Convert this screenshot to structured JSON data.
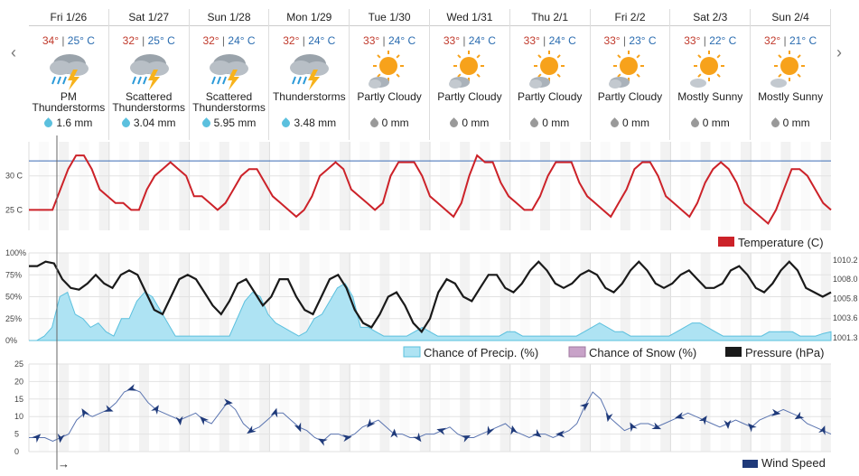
{
  "days": [
    {
      "date": "Fri 1/26",
      "hi": "34°",
      "lo": "25° C",
      "cond": "PM Thunderstorms",
      "precip": "1.6 mm",
      "icon": "thunderstorm-icon"
    },
    {
      "date": "Sat 1/27",
      "hi": "32°",
      "lo": "25° C",
      "cond": "Scattered Thunderstorms",
      "precip": "3.04 mm",
      "icon": "thunderstorm-icon"
    },
    {
      "date": "Sun 1/28",
      "hi": "32°",
      "lo": "24° C",
      "cond": "Scattered Thunderstorms",
      "precip": "5.95 mm",
      "icon": "thunderstorm-icon"
    },
    {
      "date": "Mon 1/29",
      "hi": "32°",
      "lo": "24° C",
      "cond": "Thunderstorms",
      "precip": "3.48 mm",
      "icon": "thunderstorm-icon"
    },
    {
      "date": "Tue 1/30",
      "hi": "33°",
      "lo": "24° C",
      "cond": "Partly Cloudy",
      "precip": "0 mm",
      "icon": "partly-cloudy-icon"
    },
    {
      "date": "Wed 1/31",
      "hi": "33°",
      "lo": "24° C",
      "cond": "Partly Cloudy",
      "precip": "0 mm",
      "icon": "partly-cloudy-icon"
    },
    {
      "date": "Thu 2/1",
      "hi": "33°",
      "lo": "24° C",
      "cond": "Partly Cloudy",
      "precip": "0 mm",
      "icon": "partly-cloudy-icon"
    },
    {
      "date": "Fri 2/2",
      "hi": "33°",
      "lo": "23° C",
      "cond": "Partly Cloudy",
      "precip": "0 mm",
      "icon": "partly-cloudy-icon"
    },
    {
      "date": "Sat 2/3",
      "hi": "33°",
      "lo": "22° C",
      "cond": "Mostly Sunny",
      "precip": "0 mm",
      "icon": "mostly-sunny-icon"
    },
    {
      "date": "Sun 2/4",
      "hi": "32°",
      "lo": "21° C",
      "cond": "Mostly Sunny",
      "precip": "0 mm",
      "icon": "mostly-sunny-icon"
    }
  ],
  "nav": {
    "prev": "‹",
    "next": "›"
  },
  "colors": {
    "temperature": "#cc2229",
    "precip": "#5bc0de",
    "snow": "#c8a2c8",
    "pressure": "#1a1a1a",
    "wind": "#1f3a7a",
    "reference": "#3b6bb5"
  },
  "chart_data": [
    {
      "type": "line",
      "legend": "Temperature (C)",
      "ylim": [
        22,
        35
      ],
      "yticks": [
        "30 C",
        "25 C"
      ],
      "ytick_values": [
        30,
        25
      ],
      "reference_line": 32.2,
      "x_hours_step": 3,
      "values": [
        25,
        25,
        25,
        25,
        28,
        31,
        33,
        33,
        31,
        28,
        27,
        26,
        26,
        25,
        25,
        28,
        30,
        31,
        32,
        31,
        30,
        27,
        27,
        26,
        25,
        26,
        28,
        30,
        31,
        31,
        29,
        27,
        26,
        25,
        24,
        25,
        27,
        30,
        31,
        32,
        31,
        28,
        27,
        26,
        25,
        26,
        30,
        32,
        32,
        32,
        30,
        27,
        26,
        25,
        24,
        26,
        30,
        33,
        32,
        32,
        29,
        27,
        26,
        25,
        25,
        27,
        30,
        32,
        32,
        32,
        29,
        27,
        26,
        25,
        24,
        26,
        28,
        31,
        32,
        32,
        30,
        27,
        26,
        25,
        24,
        26,
        29,
        31,
        32,
        31,
        29,
        26,
        25,
        24,
        23,
        25,
        28,
        31,
        31,
        30,
        28,
        26,
        25
      ]
    },
    {
      "type": "area",
      "series": [
        {
          "name": "Chance of Precip. (%)",
          "values": [
            0,
            0,
            5,
            15,
            50,
            55,
            30,
            25,
            15,
            20,
            10,
            5,
            25,
            25,
            45,
            55,
            50,
            35,
            20,
            5,
            5,
            5,
            5,
            5,
            5,
            5,
            5,
            25,
            45,
            55,
            50,
            30,
            20,
            15,
            10,
            5,
            10,
            25,
            30,
            45,
            60,
            65,
            50,
            15,
            15,
            10,
            5,
            5,
            5,
            5,
            10,
            15,
            10,
            5,
            5,
            5,
            5,
            5,
            5,
            5,
            5,
            5,
            10,
            10,
            5,
            5,
            5,
            5,
            5,
            5,
            5,
            5,
            10,
            15,
            20,
            15,
            10,
            10,
            5,
            5,
            5,
            5,
            5,
            5,
            10,
            15,
            20,
            20,
            15,
            10,
            5,
            5,
            5,
            5,
            5,
            5,
            10,
            10,
            10,
            10,
            5,
            5,
            5,
            8,
            10
          ]
        },
        {
          "name": "Chance of Snow (%)",
          "values": []
        },
        {
          "name": "Pressure (hPa)",
          "values": [
            1009.5,
            1009.5,
            1010.0,
            1009.8,
            1008.0,
            1007.0,
            1006.8,
            1007.5,
            1008.5,
            1007.5,
            1007.0,
            1008.5,
            1009.0,
            1008.5,
            1006.5,
            1004.5,
            1004.0,
            1006.0,
            1008.0,
            1008.5,
            1008.0,
            1006.5,
            1005.0,
            1004.0,
            1005.5,
            1007.5,
            1008.0,
            1006.5,
            1005.0,
            1006.0,
            1008.0,
            1008.0,
            1006.0,
            1004.5,
            1004.0,
            1006.0,
            1008.0,
            1008.5,
            1007.0,
            1004.5,
            1003.0,
            1002.5,
            1004.0,
            1006.0,
            1006.5,
            1005.0,
            1003.0,
            1002.0,
            1003.5,
            1006.5,
            1008.0,
            1007.5,
            1006.0,
            1005.5,
            1007.0,
            1008.5,
            1008.5,
            1007.0,
            1006.5,
            1007.5,
            1009.0,
            1010.0,
            1009.0,
            1007.5,
            1007.0,
            1007.5,
            1008.5,
            1009.0,
            1008.5,
            1007.0,
            1006.5,
            1007.5,
            1009.0,
            1010.0,
            1009.0,
            1007.5,
            1007.0,
            1007.5,
            1008.5,
            1009.0,
            1008.0,
            1007.0,
            1007.0,
            1007.5,
            1009.0,
            1009.5,
            1008.5,
            1007.0,
            1006.5,
            1007.5,
            1009.0,
            1010.0,
            1009.0,
            1007.0,
            1006.5,
            1006.0,
            1006.5
          ]
        }
      ],
      "ylim_pct": [
        0,
        100
      ],
      "yticks_left": [
        "100%",
        "75%",
        "50%",
        "25%",
        "0%"
      ],
      "ytick_left_values": [
        100,
        75,
        50,
        25,
        0
      ],
      "ylim_hpa": [
        1001,
        1011
      ],
      "yticks_right": [
        "1010.2",
        "1008.0",
        "1005.8",
        "1003.6",
        "1001.3"
      ],
      "ytick_right_values": [
        1010.2,
        1008.0,
        1005.8,
        1003.6,
        1001.3
      ]
    },
    {
      "type": "line",
      "legend": "Wind Speed",
      "ylim": [
        0,
        25
      ],
      "yticks": [
        "25",
        "20",
        "15",
        "10",
        "5",
        "0"
      ],
      "ytick_values": [
        25,
        20,
        15,
        10,
        5,
        0
      ],
      "values": [
        4,
        4,
        4,
        3,
        4,
        5,
        9,
        11,
        10,
        11,
        12,
        14,
        17,
        18,
        17,
        14,
        12,
        11,
        10,
        9,
        10,
        11,
        9,
        8,
        11,
        14,
        12,
        8,
        6,
        7,
        9,
        11,
        11,
        9,
        7,
        6,
        4,
        3,
        5,
        5,
        4,
        5,
        7,
        8,
        9,
        7,
        5,
        5,
        4,
        4,
        5,
        5,
        6,
        7,
        5,
        4,
        4,
        5,
        6,
        7,
        8,
        6,
        5,
        4,
        5,
        5,
        4,
        5,
        6,
        8,
        13,
        17,
        15,
        10,
        8,
        6,
        7,
        8,
        8,
        7,
        8,
        9,
        10,
        11,
        10,
        9,
        8,
        7,
        8,
        9,
        8,
        7,
        9,
        10,
        11,
        12,
        11,
        10,
        8,
        7,
        6,
        5
      ]
    }
  ],
  "wind_arrow_legend": "→"
}
